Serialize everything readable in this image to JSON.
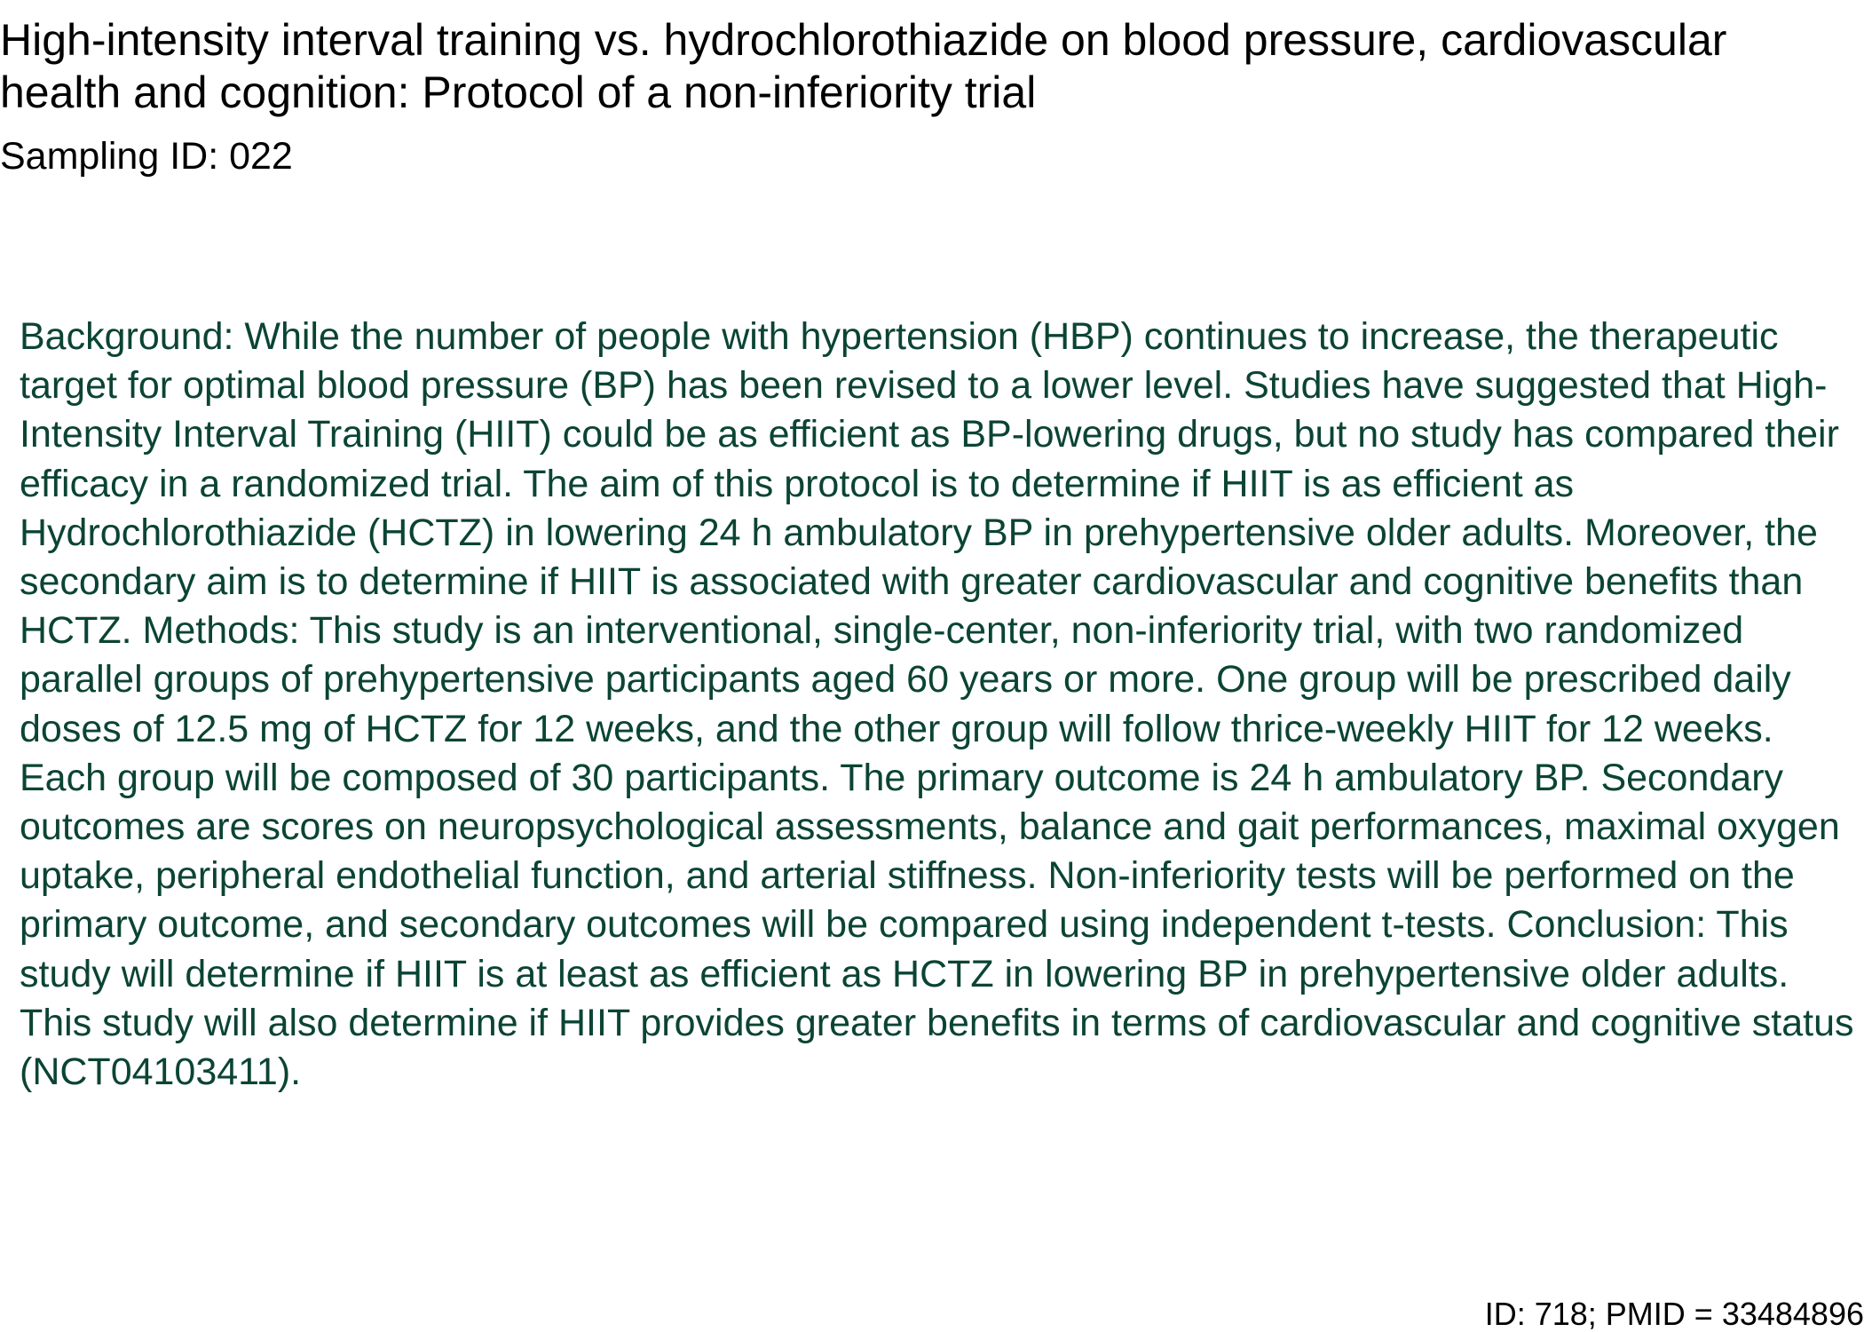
{
  "document": {
    "title": "High-intensity interval training vs. hydrochlorothiazide on blood pressure, cardiovascular health and cognition: Protocol of a non-inferiority trial",
    "sampling_id": "Sampling ID: 022",
    "abstract": "Background: While the number of people with hypertension (HBP) continues to increase, the therapeutic target for optimal blood pressure (BP) has been revised to a lower level. Studies have suggested that High-Intensity Interval Training (HIIT) could be as efficient as BP-lowering drugs, but no study has compared their efficacy in a randomized trial. The aim of this protocol is to determine if HIIT is as efficient as Hydrochlorothiazide (HCTZ) in lowering 24 h ambulatory BP in prehypertensive older adults. Moreover, the secondary aim is to determine if HIIT is associated with greater cardiovascular and cognitive benefits than HCTZ. Methods: This study is an interventional, single-center, non-inferiority trial, with two randomized parallel groups of prehypertensive participants aged 60 years or more. One group will be prescribed daily doses of 12.5 mg of HCTZ for 12 weeks, and the other group will follow thrice-weekly HIIT for 12 weeks. Each group will be composed of 30 participants. The primary outcome is 24 h ambulatory BP. Secondary outcomes are scores on neuropsychological assessments, balance and gait performances, maximal oxygen uptake, peripheral endothelial function, and arterial stiffness. Non-inferiority tests will be performed on the primary outcome, and secondary outcomes will be compared using independent t-tests. Conclusion: This study will determine if HIIT is at least as efficient as HCTZ in lowering BP in prehypertensive older adults. This study will also determine if HIIT provides greater benefits in terms of cardiovascular and cognitive status (NCT04103411).",
    "footer_id": "ID: 718; PMID = 33484896"
  },
  "colors": {
    "title_text": "#000000",
    "abstract_text": "#0b4434",
    "background": "#ffffff"
  }
}
